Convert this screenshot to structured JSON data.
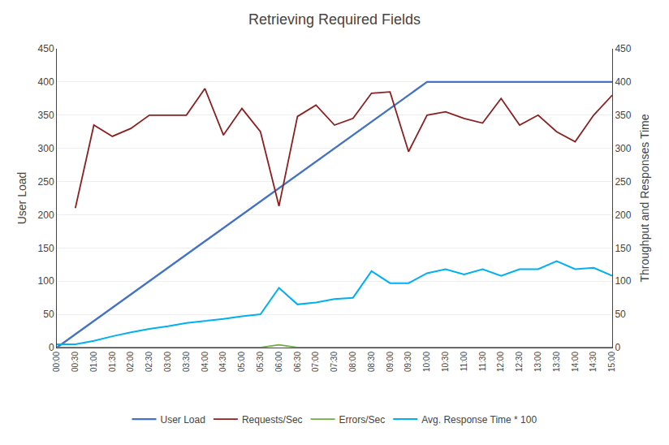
{
  "chart_data": {
    "type": "line",
    "title": "Retrieving Required Fields",
    "ylabel": "User Load",
    "y2label": "Throughput and Responses Time",
    "categories": [
      "00:00",
      "00:30",
      "01:00",
      "01:30",
      "02:00",
      "02:30",
      "03:00",
      "03:30",
      "04:00",
      "04:30",
      "05:00",
      "05:30",
      "06:00",
      "06:30",
      "07:00",
      "07:30",
      "08:00",
      "08:30",
      "09:00",
      "09:30",
      "10:00",
      "10:30",
      "11:00",
      "11:30",
      "12:00",
      "12:30",
      "13:00",
      "13:30",
      "14:00",
      "14:30",
      "15:00"
    ],
    "series": [
      {
        "name": "User Load",
        "color": "#4472C4",
        "values": [
          0,
          20,
          40,
          60,
          80,
          100,
          120,
          140,
          160,
          180,
          200,
          220,
          240,
          260,
          280,
          300,
          320,
          340,
          360,
          380,
          400,
          400,
          400,
          400,
          400,
          400,
          400,
          400,
          400,
          400,
          400
        ]
      },
      {
        "name": "Requests/Sec",
        "color": "#8B2020",
        "values": [
          null,
          210,
          335,
          318,
          330,
          350,
          350,
          350,
          390,
          320,
          360,
          325,
          213,
          348,
          365,
          335,
          345,
          383,
          385,
          295,
          350,
          355,
          345,
          338,
          375,
          335,
          350,
          325,
          310,
          350,
          380
        ]
      },
      {
        "name": "Errors/Sec",
        "color": "#70AD47",
        "values": [
          0,
          0,
          0,
          0,
          0,
          0,
          0,
          0,
          0,
          0,
          0,
          0,
          4,
          0,
          0,
          0,
          0,
          0,
          0,
          0,
          0,
          0,
          0,
          0,
          0,
          0,
          0,
          0,
          0,
          0,
          0
        ]
      },
      {
        "name": "Avg. Response Time * 100",
        "color": "#00B0F0",
        "values": [
          5,
          5,
          10,
          17,
          23,
          28,
          32,
          37,
          40,
          43,
          47,
          50,
          90,
          65,
          68,
          73,
          75,
          115,
          97,
          97,
          112,
          118,
          110,
          118,
          108,
          118,
          118,
          130,
          118,
          120,
          108
        ]
      }
    ],
    "ylim": [
      0,
      450
    ],
    "yticks": [
      0,
      50,
      100,
      150,
      200,
      250,
      300,
      350,
      400,
      450
    ],
    "y2lim": [
      0,
      450
    ],
    "y2ticks": [
      0,
      50,
      100,
      150,
      200,
      250,
      300,
      350,
      400,
      450
    ],
    "grid": true,
    "legend": "bottom"
  }
}
